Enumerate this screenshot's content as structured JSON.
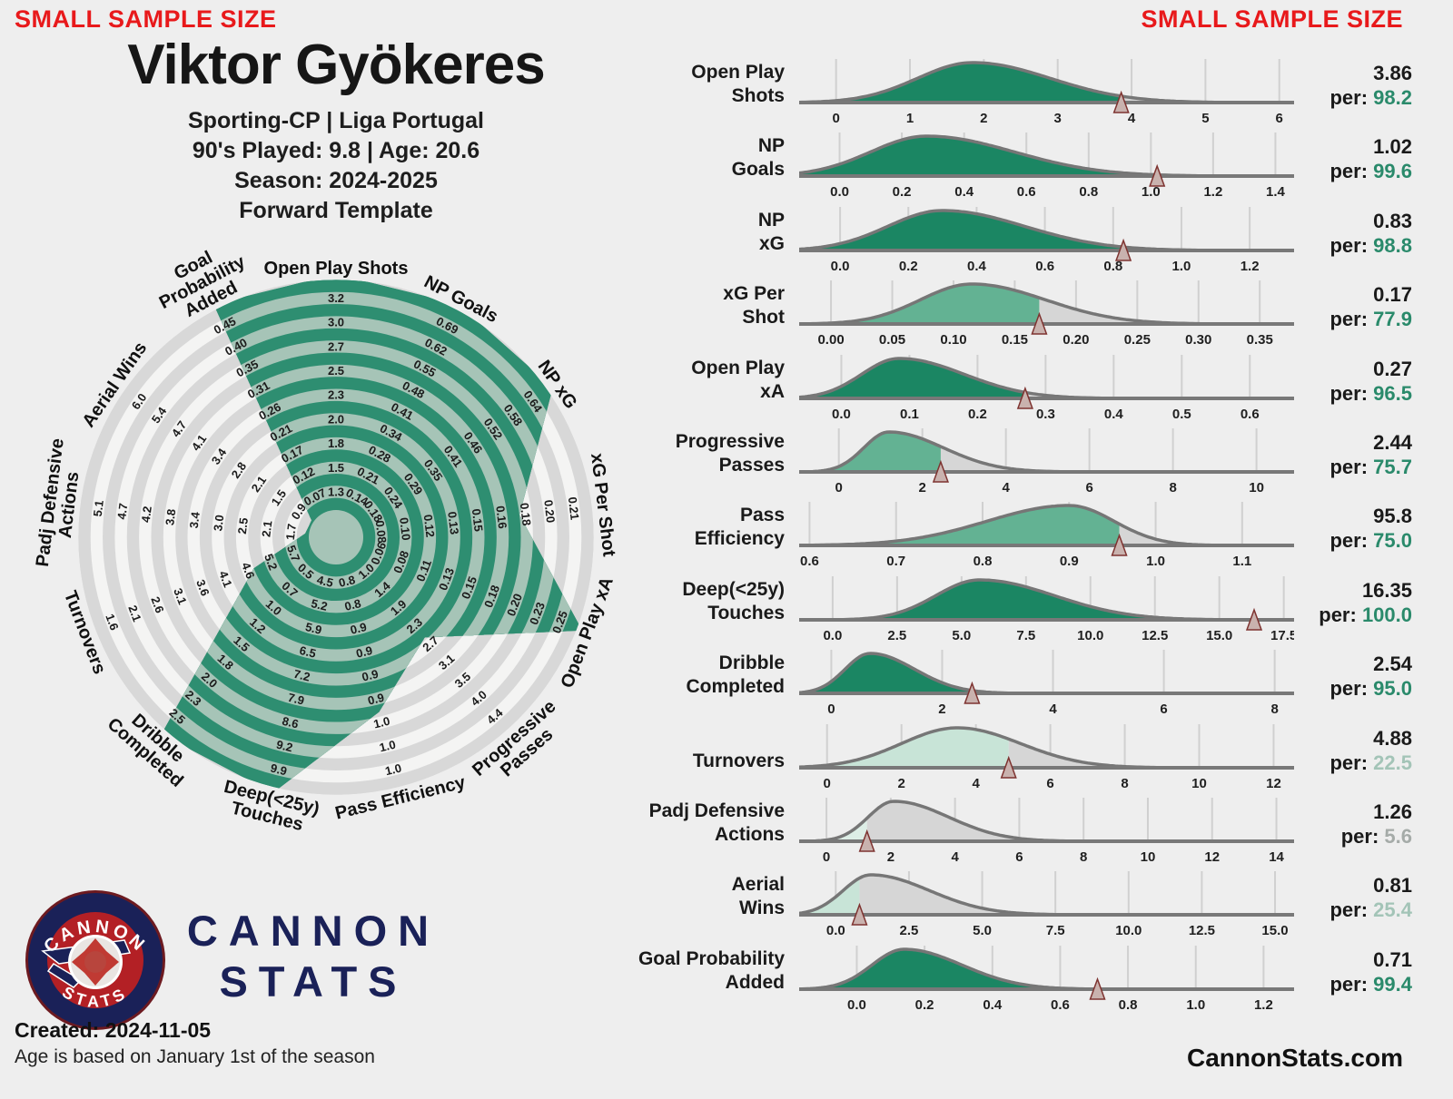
{
  "banner": {
    "left": "SMALL SAMPLE SIZE",
    "right": "SMALL SAMPLE SIZE"
  },
  "header": {
    "title": "Viktor Gyökeres",
    "line1": "Sporting-CP | Liga Portugal",
    "line2": "90's Played: 9.8 | Age: 20.6",
    "line3": "Season: 2024-2025",
    "line4": "Forward Template"
  },
  "logo": {
    "badge_top": "CANNON",
    "badge_bottom": "STATS",
    "wordmark_line1": "CANNON",
    "wordmark_line2": "STATS"
  },
  "footer": {
    "created": "Created: 2024-11-05",
    "age_note": "Age is based on January 1st of the season",
    "site": "CannonStats.com"
  },
  "colors": {
    "background": "#eeeeee",
    "red": "#e8191b",
    "navy": "#1a2158",
    "badge_red": "#b32025",
    "green_dark": "#1b8663",
    "green_mid": "#63b293",
    "green_low": "#c8e4d7",
    "green_faint": "#ddeee6",
    "pct_green": "#2a8a6b",
    "pct_pale": "#a3c4b7",
    "pct_grey": "#a5aba8",
    "grey_fill": "#d6d6d6",
    "band_grey": "#d8d8d8",
    "band_light": "#f4f4f3",
    "ring_green": "#2e8e71",
    "ring_sage": "#a6c4b7",
    "hub_base": "#f5f5f4",
    "marker_fill": "#c9b2ae",
    "marker_stroke": "#7e3330",
    "baseline": "#787878",
    "curve": "#767676",
    "gridline": "#d0d0d0",
    "tick_text": "#1f1f1f"
  },
  "chart_data": [
    {
      "type": "radar",
      "title": "Percentile radar, Forward Template",
      "rings": 9,
      "axes": [
        {
          "label": "Open Play Shots",
          "label_lines": [
            "Open Play Shots"
          ],
          "ticks": [
            "1.3",
            "1.5",
            "1.8",
            "2.0",
            "2.3",
            "2.5",
            "2.7",
            "3.0",
            "3.2"
          ],
          "percentile": 98.2,
          "vertex_u": 9
        },
        {
          "label": "NP Goals",
          "label_lines": [
            "NP Goals"
          ],
          "ticks": [
            "0.14",
            "0.21",
            "0.28",
            "0.34",
            "0.41",
            "0.48",
            "0.55",
            "0.62",
            "0.69"
          ],
          "percentile": 99.6,
          "vertex_u": 9
        },
        {
          "label": "NP xG",
          "label_lines": [
            "NP xG"
          ],
          "ticks": [
            "0.18",
            "0.24",
            "0.29",
            "0.35",
            "0.41",
            "0.46",
            "0.52",
            "0.58",
            "0.64"
          ],
          "percentile": 98.8,
          "vertex_u": 9
        },
        {
          "label": "xG Per Shot",
          "label_lines": [
            "xG Per Shot"
          ],
          "ticks": [
            "0.08",
            "0.10",
            "0.12",
            "0.13",
            "0.15",
            "0.16",
            "0.18",
            "0.20",
            "0.21"
          ],
          "percentile": 77.9,
          "vertex_u": 6.5
        },
        {
          "label": "Open Play xA",
          "label_lines": [
            "Open Play xA"
          ],
          "ticks": [
            "0.06",
            "0.08",
            "0.11",
            "0.13",
            "0.15",
            "0.18",
            "0.20",
            "0.23",
            "0.25"
          ],
          "percentile": 96.5,
          "vertex_u": 9
        },
        {
          "label": "Progressive Passes",
          "label_lines": [
            "Progressive",
            "Passes"
          ],
          "ticks": [
            "1.0",
            "1.4",
            "1.9",
            "2.3",
            "2.7",
            "3.1",
            "3.5",
            "4.0",
            "4.4"
          ],
          "percentile": 75.7,
          "vertex_u": 4.4
        },
        {
          "label": "Pass Efficiency",
          "label_lines": [
            "Pass Efficiency"
          ],
          "ticks": [
            "0.8",
            "0.8",
            "0.9",
            "0.9",
            "0.9",
            "0.9",
            "1.0",
            "1.0",
            "1.0"
          ],
          "percentile": 75.0,
          "vertex_u": 6.3
        },
        {
          "label": "Deep(<25y) Touches",
          "label_lines": [
            "Deep(<25y)",
            "Touches"
          ],
          "ticks": [
            "4.5",
            "5.2",
            "5.9",
            "6.5",
            "7.2",
            "7.9",
            "8.6",
            "9.2",
            "9.9"
          ],
          "percentile": 100.0,
          "vertex_u": 9
        },
        {
          "label": "Dribble Completed",
          "label_lines": [
            "Dribble",
            "Completed"
          ],
          "ticks": [
            "0.5",
            "0.7",
            "1.0",
            "1.2",
            "1.5",
            "1.8",
            "2.0",
            "2.3",
            "2.5"
          ],
          "percentile": 95.0,
          "vertex_u": 9
        },
        {
          "label": "Turnovers",
          "label_lines": [
            "Turnovers"
          ],
          "ticks": [
            "5.7",
            "5.2",
            "4.6",
            "4.1",
            "3.6",
            "3.1",
            "2.6",
            "2.1",
            "1.6"
          ],
          "percentile": 22.5,
          "vertex_u": 2.5
        },
        {
          "label": "Padj Defensive Actions",
          "label_lines": [
            "Padj Defensive",
            "Actions"
          ],
          "ticks": [
            "1.7",
            "2.1",
            "2.5",
            "3.0",
            "3.4",
            "3.8",
            "4.2",
            "4.7",
            "5.1"
          ],
          "percentile": 5.6,
          "vertex_u": 0.15
        },
        {
          "label": "Aerial Wins",
          "label_lines": [
            "Aerial Wins"
          ],
          "ticks": [
            "0.9",
            "1.5",
            "2.1",
            "2.8",
            "3.4",
            "4.1",
            "4.7",
            "5.4",
            "6.0"
          ],
          "percentile": 25.4,
          "vertex_u": 0.1
        },
        {
          "label": "Goal Probability Added",
          "label_lines": [
            "Goal",
            "Probability",
            "Added"
          ],
          "ticks": [
            "0.07",
            "0.12",
            "0.17",
            "0.21",
            "0.26",
            "0.31",
            "0.35",
            "0.40",
            "0.45"
          ],
          "percentile": 99.4,
          "vertex_u": 9
        }
      ]
    },
    {
      "type": "area",
      "subtype": "kde_distribution_rows",
      "per_label": "per:",
      "rows": [
        {
          "label": "Open Play Shots",
          "label_lines": [
            "Open Play",
            "Shots"
          ],
          "value": "3.86",
          "percentile": "98.2",
          "band": "high",
          "ticks": [
            "0",
            "1",
            "2",
            "3",
            "4",
            "5",
            "6"
          ],
          "xmin": -0.5,
          "xmax": 6.2,
          "mode": 1.85,
          "sigma_left": 0.75,
          "sigma_right": 1.05,
          "marker": 3.86
        },
        {
          "label": "NP Goals",
          "label_lines": [
            "NP",
            "Goals"
          ],
          "value": "1.02",
          "percentile": "99.6",
          "band": "high",
          "ticks": [
            "0.0",
            "0.2",
            "0.4",
            "0.6",
            "0.8",
            "1.0",
            "1.2",
            "1.4"
          ],
          "xmin": -0.13,
          "xmax": 1.46,
          "mode": 0.28,
          "sigma_left": 0.18,
          "sigma_right": 0.28,
          "marker": 1.02
        },
        {
          "label": "NP xG",
          "label_lines": [
            "NP",
            "xG"
          ],
          "value": "0.83",
          "percentile": "98.8",
          "band": "high",
          "ticks": [
            "0.0",
            "0.2",
            "0.4",
            "0.6",
            "0.8",
            "1.0",
            "1.2"
          ],
          "xmin": -0.12,
          "xmax": 1.33,
          "mode": 0.3,
          "sigma_left": 0.16,
          "sigma_right": 0.24,
          "marker": 0.83
        },
        {
          "label": "xG Per Shot",
          "label_lines": [
            "xG Per",
            "Shot"
          ],
          "value": "0.17",
          "percentile": "77.9",
          "band": "mid",
          "ticks": [
            "0.00",
            "0.05",
            "0.10",
            "0.15",
            "0.20",
            "0.25",
            "0.30",
            "0.35"
          ],
          "xmin": -0.026,
          "xmax": 0.378,
          "mode": 0.115,
          "sigma_left": 0.042,
          "sigma_right": 0.06,
          "marker": 0.17
        },
        {
          "label": "Open Play xA",
          "label_lines": [
            "Open Play",
            "xA"
          ],
          "value": "0.27",
          "percentile": "96.5",
          "band": "high",
          "ticks": [
            "0.0",
            "0.1",
            "0.2",
            "0.3",
            "0.4",
            "0.5",
            "0.6"
          ],
          "xmin": -0.062,
          "xmax": 0.665,
          "mode": 0.085,
          "sigma_left": 0.055,
          "sigma_right": 0.095,
          "marker": 0.27
        },
        {
          "label": "Progressive Passes",
          "label_lines": [
            "Progressive",
            "Passes"
          ],
          "value": "2.44",
          "percentile": "75.7",
          "band": "mid",
          "ticks": [
            "0",
            "2",
            "4",
            "6",
            "8",
            "10"
          ],
          "xmin": -0.95,
          "xmax": 10.9,
          "mode": 1.2,
          "sigma_left": 0.6,
          "sigma_right": 1.3,
          "marker": 2.44
        },
        {
          "label": "Pass Efficiency",
          "label_lines": [
            "Pass",
            "Efficiency"
          ],
          "value": "95.8",
          "percentile": "75.0",
          "band": "mid",
          "ticks": [
            "0.6",
            "0.7",
            "0.8",
            "0.9",
            "1.0",
            "1.1"
          ],
          "xmin": 0.588,
          "xmax": 1.16,
          "mode": 0.9,
          "sigma_left": 0.095,
          "sigma_right": 0.052,
          "marker": 0.958
        },
        {
          "label": "Deep(<25y) Touches",
          "label_lines": [
            "Deep(<25y)",
            "Touches"
          ],
          "value": "16.35",
          "percentile": "100.0",
          "band": "high",
          "ticks": [
            "0.0",
            "2.5",
            "5.0",
            "7.5",
            "10.0",
            "12.5",
            "15.0",
            "17.5"
          ],
          "xmin": -1.3,
          "xmax": 17.9,
          "mode": 5.7,
          "sigma_left": 1.7,
          "sigma_right": 2.9,
          "marker": 16.35
        },
        {
          "label": "Dribble Completed",
          "label_lines": [
            "Dribble",
            "Completed"
          ],
          "value": "2.54",
          "percentile": "95.0",
          "band": "high",
          "ticks": [
            "0",
            "2",
            "4",
            "6",
            "8"
          ],
          "xmin": -0.58,
          "xmax": 8.35,
          "mode": 0.7,
          "sigma_left": 0.45,
          "sigma_right": 0.8,
          "marker": 2.54
        },
        {
          "label": "Turnovers",
          "label_lines": [
            "Turnovers"
          ],
          "value": "4.88",
          "percentile": "22.5",
          "band": "low",
          "ticks": [
            "0",
            "2",
            "4",
            "6",
            "8",
            "10",
            "12"
          ],
          "xmin": -0.75,
          "xmax": 12.55,
          "mode": 3.5,
          "sigma_left": 1.5,
          "sigma_right": 1.7,
          "marker": 4.88
        },
        {
          "label": "Padj Defensive Actions",
          "label_lines": [
            "Padj Defensive",
            "Actions"
          ],
          "value": "1.26",
          "percentile": "5.6",
          "band": "verylow",
          "ticks": [
            "0",
            "2",
            "4",
            "6",
            "8",
            "10",
            "12",
            "14"
          ],
          "xmin": -0.85,
          "xmax": 14.55,
          "mode": 2.1,
          "sigma_left": 0.8,
          "sigma_right": 1.7,
          "marker": 1.26
        },
        {
          "label": "Aerial Wins",
          "label_lines": [
            "Aerial",
            "Wins"
          ],
          "value": "0.81",
          "percentile": "25.4",
          "band": "low",
          "ticks": [
            "0.0",
            "2.5",
            "5.0",
            "7.5",
            "10.0",
            "12.5",
            "15.0"
          ],
          "xmin": -1.25,
          "xmax": 15.65,
          "mode": 1.2,
          "sigma_left": 0.95,
          "sigma_right": 2.0,
          "marker": 0.81
        },
        {
          "label": "Goal Probability Added",
          "label_lines": [
            "Goal Probability",
            "Added"
          ],
          "value": "0.71",
          "percentile": "99.4",
          "band": "high",
          "ticks": [
            "0.0",
            "0.2",
            "0.4",
            "0.6",
            "0.8",
            "1.0",
            "1.2"
          ],
          "xmin": -0.17,
          "xmax": 1.29,
          "mode": 0.14,
          "sigma_left": 0.095,
          "sigma_right": 0.17,
          "marker": 0.71
        }
      ]
    }
  ]
}
